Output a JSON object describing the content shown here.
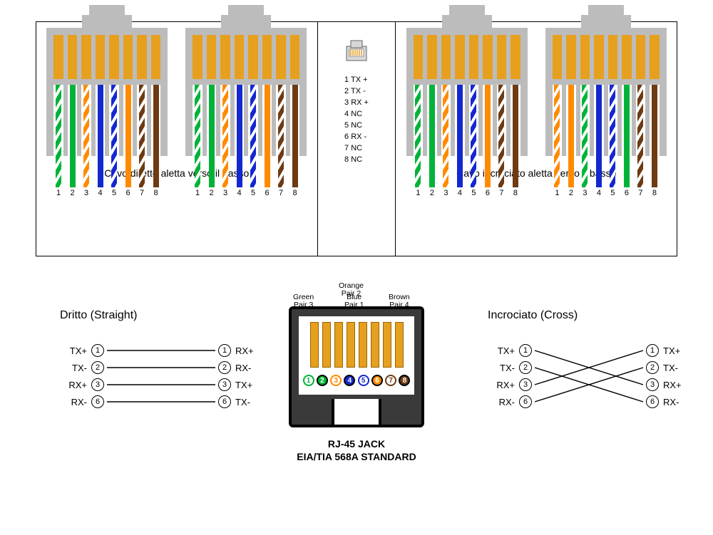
{
  "colors": {
    "green": "#00b338",
    "orange": "#ff8a00",
    "blue": "#1428d0",
    "brown": "#6e3a12",
    "gold": "#e6a01e",
    "plastic": "#bcbcbc"
  },
  "t568a": [
    {
      "type": "striped",
      "color": "green"
    },
    {
      "type": "solid",
      "color": "green"
    },
    {
      "type": "striped",
      "color": "orange"
    },
    {
      "type": "solid",
      "color": "blue"
    },
    {
      "type": "striped",
      "color": "blue"
    },
    {
      "type": "solid",
      "color": "orange"
    },
    {
      "type": "striped",
      "color": "brown"
    },
    {
      "type": "solid",
      "color": "brown"
    }
  ],
  "t568b": [
    {
      "type": "striped",
      "color": "orange"
    },
    {
      "type": "solid",
      "color": "orange"
    },
    {
      "type": "striped",
      "color": "green"
    },
    {
      "type": "solid",
      "color": "blue"
    },
    {
      "type": "striped",
      "color": "blue"
    },
    {
      "type": "solid",
      "color": "green"
    },
    {
      "type": "striped",
      "color": "brown"
    },
    {
      "type": "solid",
      "color": "brown"
    }
  ],
  "topLeftCaption": "Cavo diretto  aletta verso il basso",
  "topRightCaption": "Cavo incrociato  aletta verso il basso",
  "centerPins": [
    "1 TX +",
    "2 TX -",
    "3 RX +",
    "4 NC",
    "5 NC",
    "6 RX -",
    "7 NC",
    "8 NC"
  ],
  "jack": {
    "pairLabels": [
      {
        "l1": "Green",
        "l2": "Pair 3"
      },
      {
        "l1": "Orange",
        "l2": "Pair 2"
      },
      {
        "l1": "Blue",
        "l2": "Pair 1"
      },
      {
        "l1": "Brown",
        "l2": "Pair 4"
      }
    ],
    "circles": [
      {
        "n": "1",
        "fill": "#ffffff",
        "border": "#00b338",
        "text": "#00b338"
      },
      {
        "n": "2",
        "fill": "#00b338",
        "border": "#000",
        "text": "#fff"
      },
      {
        "n": "3",
        "fill": "#ffffff",
        "border": "#ff8a00",
        "text": "#ff8a00"
      },
      {
        "n": "4",
        "fill": "#1428d0",
        "border": "#000",
        "text": "#fff"
      },
      {
        "n": "5",
        "fill": "#ffffff",
        "border": "#1428d0",
        "text": "#1428d0"
      },
      {
        "n": "6",
        "fill": "#ff8a00",
        "border": "#000",
        "text": "#fff"
      },
      {
        "n": "7",
        "fill": "#ffffff",
        "border": "#6e3a12",
        "text": "#6e3a12"
      },
      {
        "n": "8",
        "fill": "#6e3a12",
        "border": "#000",
        "text": "#fff"
      }
    ],
    "cap1": "RJ-45 JACK",
    "cap2": "EIA/TIA 568A STANDARD"
  },
  "straight": {
    "title": "Dritto (Straight)",
    "rows": [
      {
        "l": "TX+",
        "ln": "1",
        "rn": "1",
        "r": "RX+"
      },
      {
        "l": "TX-",
        "ln": "2",
        "rn": "2",
        "r": "RX-"
      },
      {
        "l": "RX+",
        "ln": "3",
        "rn": "3",
        "r": "TX+"
      },
      {
        "l": "RX-",
        "ln": "6",
        "rn": "6",
        "r": "TX-"
      }
    ],
    "lines": [
      [
        0,
        0
      ],
      [
        1,
        1
      ],
      [
        2,
        2
      ],
      [
        3,
        3
      ]
    ]
  },
  "cross": {
    "title": "Incrociato (Cross)",
    "rows": [
      {
        "l": "TX+",
        "ln": "1",
        "rn": "1",
        "r": "TX+"
      },
      {
        "l": "TX-",
        "ln": "2",
        "rn": "2",
        "r": "TX-"
      },
      {
        "l": "RX+",
        "ln": "3",
        "rn": "3",
        "r": "RX+"
      },
      {
        "l": "RX-",
        "ln": "6",
        "rn": "6",
        "r": "RX-"
      }
    ],
    "lines": [
      [
        0,
        2
      ],
      [
        1,
        3
      ],
      [
        2,
        0
      ],
      [
        3,
        1
      ]
    ]
  }
}
